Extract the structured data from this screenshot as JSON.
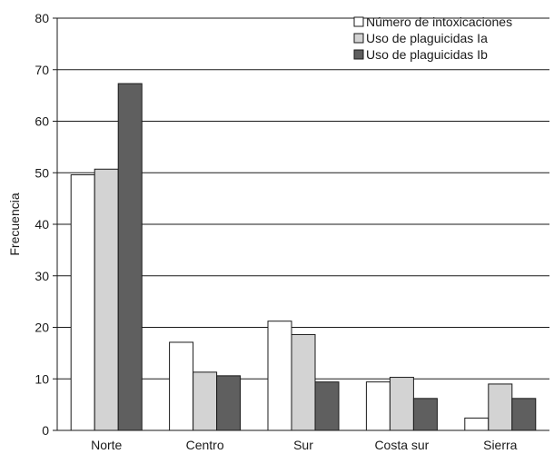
{
  "chart_data": {
    "type": "bar",
    "title": "",
    "xlabel": "",
    "ylabel": "Frecuencia",
    "ylim": [
      0,
      80
    ],
    "yticks": [
      0,
      10,
      20,
      30,
      40,
      50,
      60,
      70,
      80
    ],
    "grid": "horizontal",
    "legend_position": "top-right",
    "categories": [
      "Norte",
      "Centro",
      "Sur",
      "Costa sur",
      "Sierra"
    ],
    "series": [
      {
        "name": "Número de intoxicaciones",
        "color": "#ffffff",
        "values": [
          49.6,
          17.1,
          21.2,
          9.4,
          2.4
        ]
      },
      {
        "name": "Uso de plaguicidas Ia",
        "color": "#d3d3d3",
        "values": [
          50.7,
          11.3,
          18.6,
          10.3,
          9.0
        ]
      },
      {
        "name": "Uso de plaguicidas Ib",
        "color": "#5f5f5f",
        "values": [
          67.3,
          10.6,
          9.4,
          6.2,
          6.2
        ]
      }
    ]
  }
}
